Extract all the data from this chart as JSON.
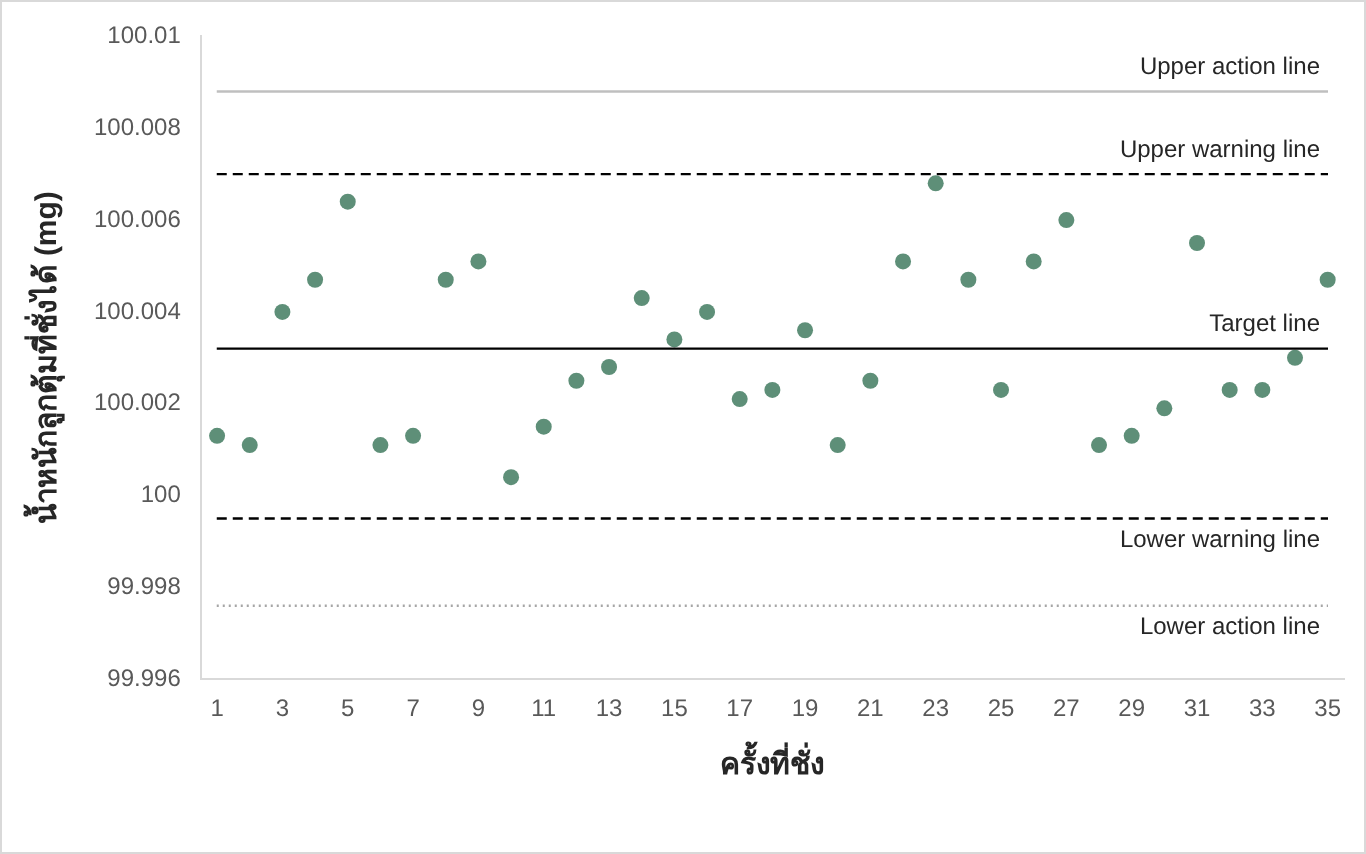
{
  "chart_data": {
    "type": "scatter",
    "xlabel": "ครั้งที่ชั่ง",
    "ylabel": "น้ำหนักลูกตุ้มที่ชั่งได้ (mg)",
    "x": [
      1,
      2,
      3,
      4,
      5,
      6,
      7,
      8,
      9,
      10,
      11,
      12,
      13,
      14,
      15,
      16,
      17,
      18,
      19,
      20,
      21,
      22,
      23,
      24,
      25,
      26,
      27,
      28,
      29,
      30,
      31,
      32,
      33,
      34,
      35
    ],
    "xlim": [
      0.5,
      35.5
    ],
    "xticks": [
      1,
      3,
      5,
      7,
      9,
      11,
      13,
      15,
      17,
      19,
      21,
      23,
      25,
      27,
      29,
      31,
      33,
      35
    ],
    "series": [
      {
        "color": "#5e8f78",
        "values": [
          100.0013,
          100.0011,
          100.004,
          100.0047,
          100.0064,
          100.0011,
          100.0013,
          100.0047,
          100.0051,
          100.0004,
          100.0015,
          100.0025,
          100.0028,
          100.0043,
          100.0034,
          100.004,
          100.0021,
          100.0023,
          100.0036,
          100.0011,
          100.0025,
          100.0051,
          100.0068,
          100.0047,
          100.0023,
          100.0051,
          100.006,
          100.0011,
          100.0013,
          100.0019,
          100.0055,
          100.0023,
          100.0023,
          100.003,
          100.0047
        ]
      }
    ],
    "ylim": [
      99.996,
      100.01
    ],
    "yticks": [
      100.01,
      100.008,
      100.006,
      100.004,
      100.002,
      100,
      99.998,
      99.996
    ],
    "grid": false,
    "legend": false,
    "marker": "circle",
    "ref_lines": [
      {
        "axis": "y",
        "value": 100.0088,
        "label": "Upper action line",
        "color": "#bfbfbf",
        "line_style": "solid"
      },
      {
        "axis": "y",
        "value": 100.007,
        "label": "Upper warning line",
        "color": "#000000",
        "line_style": "dashed"
      },
      {
        "axis": "y",
        "value": 100.0032,
        "label": "Target line",
        "color": "#000000",
        "line_style": "solid"
      },
      {
        "axis": "y",
        "value": 99.9995,
        "label": "Lower warning line",
        "color": "#000000",
        "line_style": "dashed"
      },
      {
        "axis": "y",
        "value": 99.9976,
        "label": "Lower action line",
        "color": "#a6a6a6",
        "line_style": "dotted"
      }
    ]
  }
}
